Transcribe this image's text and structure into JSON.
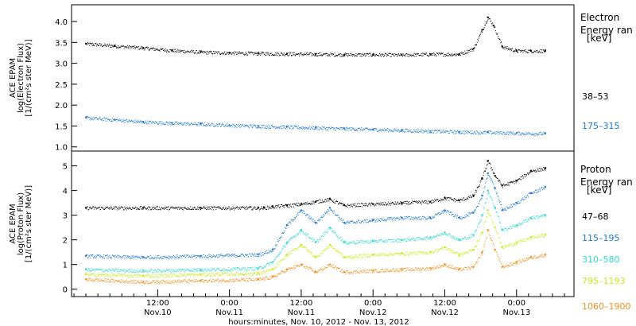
{
  "chart_data": [
    {
      "type": "scatter",
      "ylabel_lines": [
        "ACE EPAM",
        "log(Electron Flux)",
        "[1/(cm²s ster MeV)]"
      ],
      "ylim": [
        0.9,
        4.4
      ],
      "yticks": [
        1.0,
        1.5,
        2.0,
        2.5,
        3.0,
        3.5,
        4.0
      ],
      "ytick_labels": [
        "1.0",
        "1.5",
        "2.0",
        "2.5",
        "3.0",
        "3.5",
        "4.0"
      ],
      "legend_title_lines": [
        "Electron",
        "Energy ran",
        "[keV]"
      ],
      "series": [
        {
          "name": "38–53",
          "color": "#000000",
          "x": [
            0.0,
            0.2,
            0.4,
            0.6,
            0.8,
            1.0,
            1.2,
            1.4,
            1.6,
            1.8,
            2.0,
            2.2,
            2.4,
            2.6,
            2.7,
            2.76,
            2.8,
            2.84,
            2.9,
            3.0,
            3.1,
            3.2
          ],
          "y": [
            3.47,
            3.42,
            3.37,
            3.31,
            3.27,
            3.25,
            3.24,
            3.23,
            3.22,
            3.21,
            3.21,
            3.2,
            3.22,
            3.22,
            3.35,
            3.8,
            4.1,
            3.9,
            3.4,
            3.3,
            3.3,
            3.3
          ]
        },
        {
          "name": "175–315",
          "color": "#1f78d0",
          "x": [
            0.0,
            0.2,
            0.4,
            0.6,
            0.8,
            1.0,
            1.2,
            1.4,
            1.6,
            1.8,
            2.0,
            2.2,
            2.4,
            2.6,
            2.8,
            3.0,
            3.2
          ],
          "y": [
            1.7,
            1.65,
            1.6,
            1.57,
            1.55,
            1.52,
            1.5,
            1.48,
            1.46,
            1.44,
            1.42,
            1.4,
            1.38,
            1.36,
            1.35,
            1.33,
            1.32
          ]
        }
      ]
    },
    {
      "type": "scatter",
      "ylabel_lines": [
        "ACE EPAM",
        "log(Proton Flux)",
        "[1/(cm²s ster MeV)]"
      ],
      "ylim": [
        -0.3,
        5.6
      ],
      "yticks": [
        0,
        1,
        2,
        3,
        4,
        5
      ],
      "ytick_labels": [
        "0",
        "1",
        "2",
        "3",
        "4",
        "5"
      ],
      "legend_title_lines": [
        "Proton",
        "Energy ran",
        "[keV]"
      ],
      "series": [
        {
          "name": "47–68",
          "color": "#000000",
          "x": [
            0.0,
            0.4,
            0.8,
            1.2,
            1.24,
            1.3,
            1.4,
            1.5,
            1.6,
            1.7,
            1.8,
            2.0,
            2.2,
            2.4,
            2.5,
            2.6,
            2.7,
            2.76,
            2.8,
            2.85,
            2.9,
            3.0,
            3.1,
            3.2
          ],
          "y": [
            3.3,
            3.3,
            3.3,
            3.3,
            3.3,
            3.35,
            3.4,
            3.45,
            3.55,
            3.65,
            3.4,
            3.45,
            3.5,
            3.55,
            3.7,
            3.6,
            3.8,
            4.5,
            5.2,
            4.6,
            4.2,
            4.4,
            4.8,
            4.9
          ]
        },
        {
          "name": "115–195",
          "color": "#1f78d0",
          "x": [
            0.0,
            0.4,
            0.8,
            1.2,
            1.3,
            1.4,
            1.5,
            1.6,
            1.7,
            1.8,
            2.0,
            2.2,
            2.4,
            2.5,
            2.6,
            2.7,
            2.76,
            2.8,
            2.85,
            2.9,
            3.0,
            3.1,
            3.2
          ],
          "y": [
            1.35,
            1.3,
            1.35,
            1.4,
            1.6,
            2.6,
            3.2,
            2.7,
            3.3,
            2.7,
            2.8,
            2.9,
            2.9,
            3.2,
            2.9,
            3.1,
            3.8,
            4.7,
            4.1,
            3.2,
            3.5,
            3.9,
            4.15
          ]
        },
        {
          "name": "310–580",
          "color": "#30d8d0",
          "x": [
            0.0,
            0.4,
            0.8,
            1.2,
            1.3,
            1.4,
            1.5,
            1.6,
            1.7,
            1.8,
            2.0,
            2.2,
            2.4,
            2.5,
            2.6,
            2.7,
            2.76,
            2.8,
            2.85,
            2.9,
            3.0,
            3.1,
            3.2
          ],
          "y": [
            0.8,
            0.75,
            0.8,
            0.85,
            1.1,
            1.9,
            2.4,
            1.9,
            2.5,
            1.9,
            1.95,
            2.0,
            2.1,
            2.3,
            2.0,
            2.2,
            3.0,
            4.0,
            3.3,
            2.4,
            2.6,
            2.9,
            3.0
          ]
        },
        {
          "name": "795–1193",
          "color": "#c8ea1a",
          "x": [
            0.0,
            0.4,
            0.8,
            1.2,
            1.3,
            1.4,
            1.5,
            1.6,
            1.7,
            1.8,
            2.0,
            2.2,
            2.4,
            2.5,
            2.6,
            2.7,
            2.76,
            2.8,
            2.85,
            2.9,
            3.0,
            3.1,
            3.2
          ],
          "y": [
            0.6,
            0.55,
            0.6,
            0.65,
            0.8,
            1.4,
            1.8,
            1.3,
            1.8,
            1.3,
            1.4,
            1.45,
            1.5,
            1.7,
            1.4,
            1.6,
            2.3,
            3.2,
            2.5,
            1.7,
            1.9,
            2.1,
            2.2
          ]
        },
        {
          "name": "1060–1900",
          "color": "#f09020",
          "x": [
            0.0,
            0.4,
            0.8,
            1.2,
            1.3,
            1.4,
            1.5,
            1.6,
            1.7,
            1.8,
            2.0,
            2.2,
            2.4,
            2.5,
            2.6,
            2.7,
            2.76,
            2.8,
            2.85,
            2.9,
            3.0,
            3.1,
            3.2
          ],
          "y": [
            0.4,
            0.3,
            0.35,
            0.4,
            0.5,
            0.8,
            1.0,
            0.7,
            1.0,
            0.7,
            0.75,
            0.8,
            0.85,
            1.0,
            0.8,
            0.9,
            1.5,
            2.4,
            1.6,
            0.9,
            1.1,
            1.3,
            1.4
          ]
        }
      ]
    }
  ],
  "x_axis": {
    "range_days": [
      -0.1,
      3.4
    ],
    "major_ticks": [
      0.5,
      1.0,
      1.5,
      2.0,
      2.5,
      3.0
    ],
    "minor_ticks": [
      -0.0833,
      0.0,
      0.0833,
      0.1667,
      0.25,
      0.3333,
      0.4167,
      0.5833,
      0.6667,
      0.75,
      0.8333,
      0.9167,
      1.0833,
      1.1667,
      1.25,
      1.3333,
      1.4167,
      1.5833,
      1.6667,
      1.75,
      1.8333,
      1.9167,
      2.0833,
      2.1667,
      2.25,
      2.3333,
      2.4167,
      2.5833,
      2.6667,
      2.75,
      2.8333,
      2.9167,
      3.0833,
      3.1667,
      3.25,
      3.3333
    ],
    "tick_labels": [
      {
        "time": "12:00",
        "date": "Nov.10"
      },
      {
        "time": "0:00",
        "date": "Nov.11"
      },
      {
        "time": "12:00",
        "date": "Nov.11"
      },
      {
        "time": "0:00",
        "date": "Nov.12"
      },
      {
        "time": "12:00",
        "date": "Nov.12"
      },
      {
        "time": "0:00",
        "date": "Nov.13"
      }
    ],
    "xlabel": "hours:minutes, Nov. 10, 2012 - Nov. 13, 2012"
  }
}
